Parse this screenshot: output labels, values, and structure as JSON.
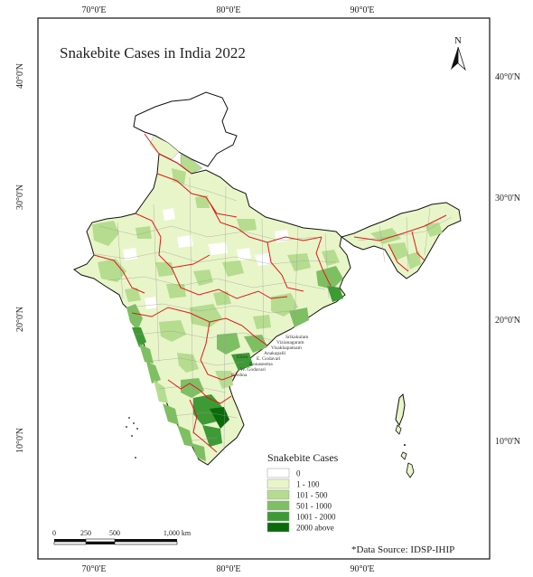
{
  "map": {
    "title": "Snakebite Cases in India 2022",
    "north_label": "N",
    "source_note": "*Data Source: IDSP-IHIP"
  },
  "graticule": {
    "longitudes": [
      "70°0'E",
      "80°0'E",
      "90°0'E"
    ],
    "latitudes": [
      "40°0'N",
      "30°0'N",
      "20°0'N",
      "10°0'N"
    ]
  },
  "legend": {
    "title": "Snakebite Cases",
    "items": [
      {
        "label": "0",
        "color": "#ffffff"
      },
      {
        "label": "1 - 100",
        "color": "#e8f5c8"
      },
      {
        "label": "101 - 500",
        "color": "#b5dc8f"
      },
      {
        "label": "501 - 1000",
        "color": "#7fbf63"
      },
      {
        "label": "1001 - 2000",
        "color": "#3e9a35"
      },
      {
        "label": "2000 above",
        "color": "#0a6b0a"
      }
    ]
  },
  "scale_bar": {
    "ticks": [
      "0",
      "250",
      "500",
      "1,000 km"
    ]
  },
  "district_labels": [
    "Srikakulam",
    "Vizianagaram",
    "Visakhapatnam",
    "Anakapalli",
    "E. Godavari",
    "Konaseema",
    "W. Godavari",
    "Krishna",
    "Eluru"
  ],
  "colors": {
    "state_border": "#e0191c",
    "district_border": "#9a9a9a",
    "outline": "#111111"
  }
}
